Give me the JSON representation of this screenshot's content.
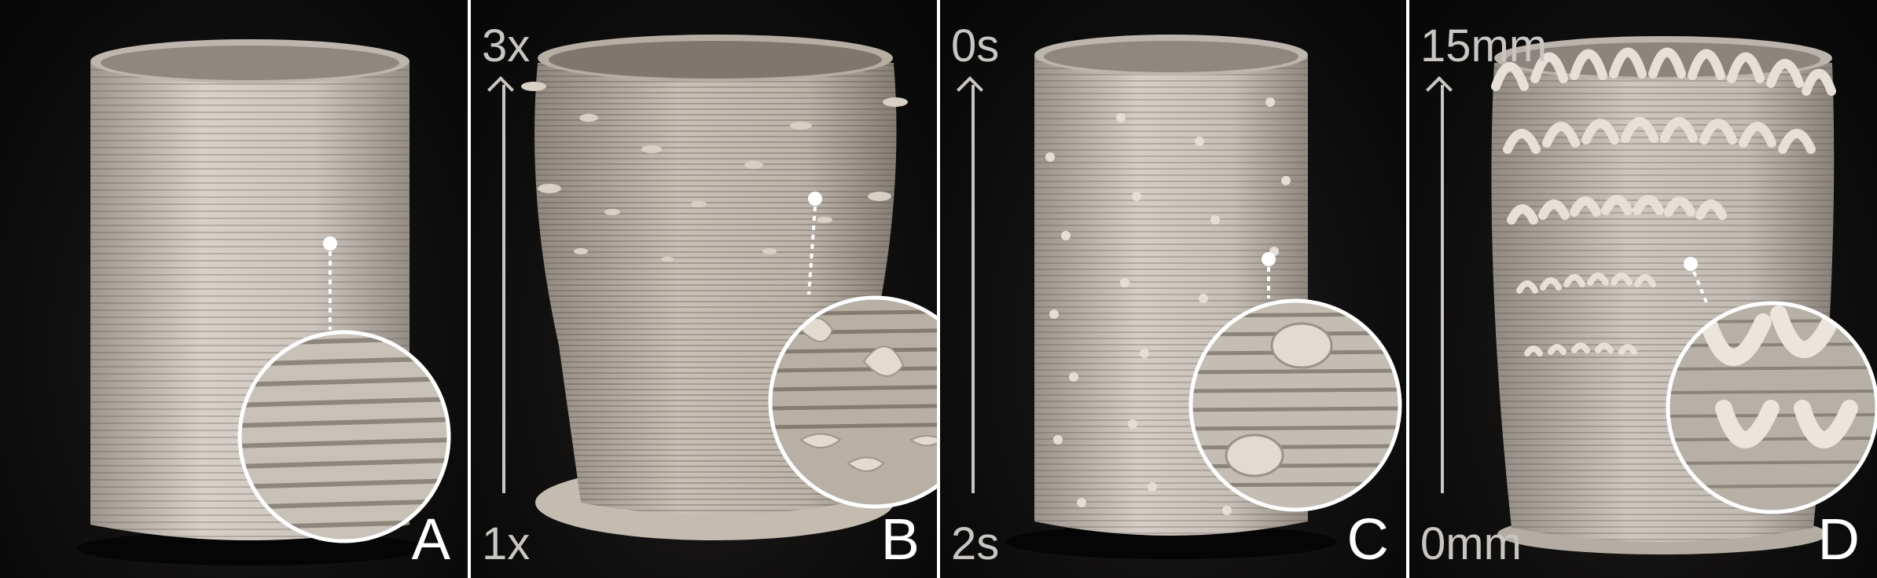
{
  "panels": [
    {
      "letter": "A",
      "scale_top": "",
      "scale_bottom": ""
    },
    {
      "letter": "B",
      "scale_top": "3x",
      "scale_bottom": "1x"
    },
    {
      "letter": "C",
      "scale_top": "0s",
      "scale_bottom": "2s"
    },
    {
      "letter": "D",
      "scale_top": "15mm",
      "scale_bottom": "0mm"
    }
  ],
  "colors": {
    "clay": "#cfc9c1",
    "clay_shadow": "#a8a29a",
    "background": "#0d0c0c",
    "label": "#ffffff",
    "scale": "#c9c6c2"
  }
}
